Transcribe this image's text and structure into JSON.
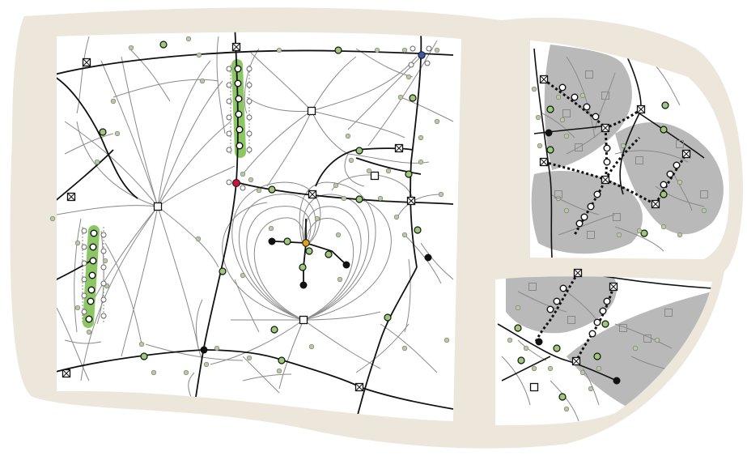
{
  "figure": {
    "panels": [
      {
        "id": "main",
        "label": ""
      },
      {
        "id": "inset-top",
        "label": ""
      },
      {
        "id": "inset-bottom",
        "label": ""
      }
    ]
  },
  "colors": {
    "frame": "#ece7da",
    "canvas": "#ffffff",
    "thin_curve": "#8a8a8a",
    "thick_curve": "#111111",
    "green_node": "#9cc97a",
    "green_highlight": "#8cc665",
    "small_node": "#b9c9a6",
    "red_node": "#c8143c",
    "blue_node": "#3d5aa8",
    "orange_node": "#e0a21e",
    "shaded_region": "#b9b9b9"
  },
  "node_types": [
    {
      "name": "square-node",
      "symbol": "open-square"
    },
    {
      "name": "crossed-square-node",
      "symbol": "square-with-x"
    },
    {
      "name": "green-node",
      "symbol": "filled-circle"
    },
    {
      "name": "open-node",
      "symbol": "open-circle"
    },
    {
      "name": "black-node",
      "symbol": "filled-circle"
    },
    {
      "name": "red-node",
      "symbol": "filled-circle"
    },
    {
      "name": "blue-node",
      "symbol": "filled-circle"
    },
    {
      "name": "orange-node",
      "symbol": "filled-circle"
    }
  ]
}
